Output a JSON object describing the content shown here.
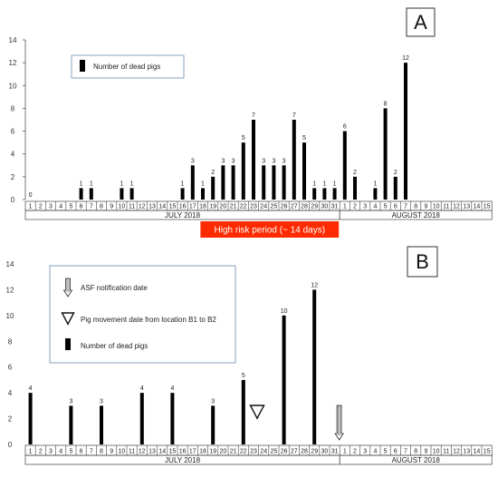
{
  "chart_data": [
    {
      "type": "bar",
      "panel_label": "A",
      "ylim": [
        0,
        14
      ],
      "yticks": [
        0,
        2,
        4,
        6,
        8,
        10,
        12,
        14
      ],
      "x_month_days": [
        {
          "month": "JULY  2018",
          "days": [
            1,
            2,
            3,
            4,
            5,
            6,
            7,
            8,
            9,
            10,
            11,
            12,
            13,
            14,
            15,
            16,
            17,
            18,
            19,
            20,
            21,
            22,
            23,
            24,
            25,
            26,
            27,
            28,
            29,
            30,
            31
          ]
        },
        {
          "month": "AUGUST  2018",
          "days": [
            1,
            2,
            3,
            4,
            5,
            6,
            7,
            8,
            9,
            10,
            11,
            12,
            13,
            14,
            15
          ]
        }
      ],
      "series": [
        {
          "name": "Number of dead pigs",
          "points": [
            {
              "month": 0,
              "day": 1,
              "value": 0
            },
            {
              "month": 0,
              "day": 6,
              "value": 1
            },
            {
              "month": 0,
              "day": 7,
              "value": 1
            },
            {
              "month": 0,
              "day": 10,
              "value": 1
            },
            {
              "month": 0,
              "day": 11,
              "value": 1
            },
            {
              "month": 0,
              "day": 16,
              "value": 1
            },
            {
              "month": 0,
              "day": 17,
              "value": 3
            },
            {
              "month": 0,
              "day": 18,
              "value": 1
            },
            {
              "month": 0,
              "day": 19,
              "value": 2
            },
            {
              "month": 0,
              "day": 20,
              "value": 3
            },
            {
              "month": 0,
              "day": 21,
              "value": 3
            },
            {
              "month": 0,
              "day": 22,
              "value": 5
            },
            {
              "month": 0,
              "day": 23,
              "value": 7
            },
            {
              "month": 0,
              "day": 24,
              "value": 3
            },
            {
              "month": 0,
              "day": 25,
              "value": 3
            },
            {
              "month": 0,
              "day": 26,
              "value": 3
            },
            {
              "month": 0,
              "day": 27,
              "value": 7
            },
            {
              "month": 0,
              "day": 28,
              "value": 5
            },
            {
              "month": 0,
              "day": 29,
              "value": 1
            },
            {
              "month": 0,
              "day": 30,
              "value": 1
            },
            {
              "month": 0,
              "day": 31,
              "value": 1
            },
            {
              "month": 1,
              "day": 1,
              "value": 6
            },
            {
              "month": 1,
              "day": 2,
              "value": 2
            },
            {
              "month": 1,
              "day": 4,
              "value": 1
            },
            {
              "month": 1,
              "day": 5,
              "value": 8
            },
            {
              "month": 1,
              "day": 6,
              "value": 2
            },
            {
              "month": 1,
              "day": 7,
              "value": 12
            }
          ]
        }
      ],
      "legend": [
        "Number of dead pigs"
      ],
      "annotations": [
        {
          "text": "High risk period (~ 14 days)",
          "from": {
            "month": 0,
            "day": 18
          },
          "to": {
            "month": 0,
            "day": 31
          }
        }
      ]
    },
    {
      "type": "bar",
      "panel_label": "B",
      "ylim": [
        0,
        14
      ],
      "yticks": [
        0,
        2,
        4,
        6,
        8,
        10,
        12,
        14
      ],
      "x_month_days": [
        {
          "month": "JULY  2018",
          "days": [
            1,
            2,
            3,
            4,
            5,
            6,
            7,
            8,
            9,
            10,
            11,
            12,
            13,
            14,
            15,
            16,
            17,
            18,
            19,
            20,
            21,
            22,
            23,
            24,
            25,
            26,
            27,
            28,
            29,
            30,
            31
          ]
        },
        {
          "month": "AUGUST  2018",
          "days": [
            1,
            2,
            3,
            4,
            5,
            6,
            7,
            8,
            9,
            10,
            11,
            12,
            13,
            14,
            15
          ]
        }
      ],
      "series": [
        {
          "name": "Number of dead pigs",
          "points": [
            {
              "month": 0,
              "day": 1,
              "value": 4
            },
            {
              "month": 0,
              "day": 5,
              "value": 3
            },
            {
              "month": 0,
              "day": 8,
              "value": 3
            },
            {
              "month": 0,
              "day": 12,
              "value": 4
            },
            {
              "month": 0,
              "day": 15,
              "value": 4
            },
            {
              "month": 0,
              "day": 19,
              "value": 3
            },
            {
              "month": 0,
              "day": 22,
              "value": 5
            },
            {
              "month": 0,
              "day": 26,
              "value": 10
            },
            {
              "month": 0,
              "day": 29,
              "value": 12
            }
          ]
        }
      ],
      "legend": [
        "ASF notification date",
        "Pig movement date from location B1 to B2",
        "Number of dead pigs"
      ],
      "markers": [
        {
          "kind": "movement",
          "month": 0,
          "day": 23
        },
        {
          "kind": "notification",
          "month": 0,
          "day": 31
        }
      ]
    }
  ]
}
